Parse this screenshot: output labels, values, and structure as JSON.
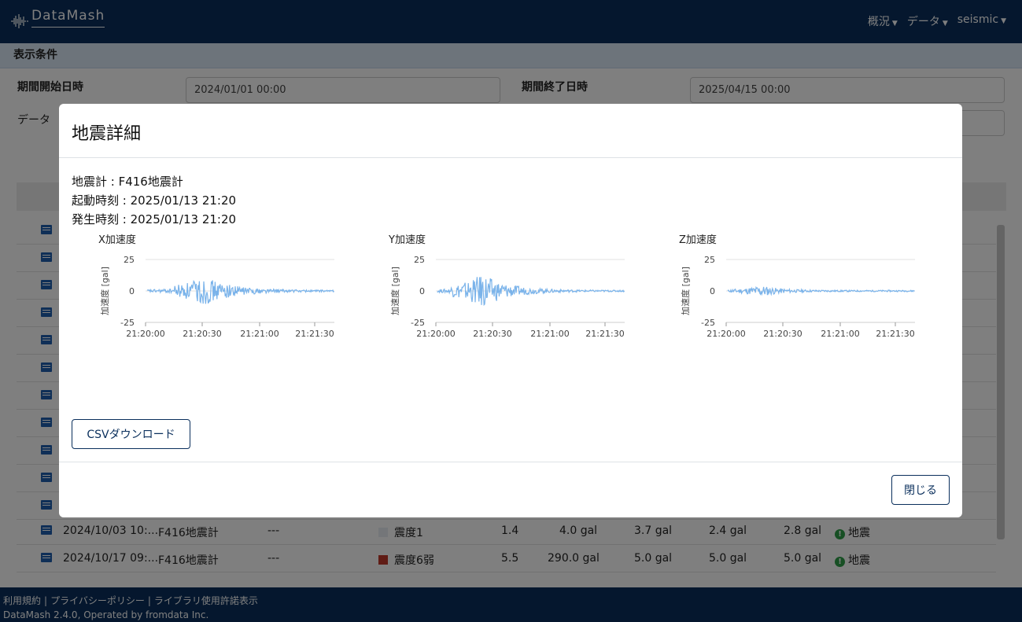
{
  "app": {
    "logo_text": "DataMash",
    "nav": [
      {
        "label": "概況"
      },
      {
        "label": "データ"
      },
      {
        "label": "seismic"
      }
    ]
  },
  "filter": {
    "header": "表示条件",
    "start_label": "期間開始日時",
    "start_value": "2024/01/01 00:00",
    "end_label": "期間終了日時",
    "end_value": "2025/04/15 00:00",
    "data_label": "データ"
  },
  "table": {
    "rows": [
      {
        "datetime": "2024/10/03 10:...",
        "device": "F416地震計",
        "dash": "---",
        "intensity": "震度1",
        "intensity_color": "#e9ecf3",
        "value": "1.4",
        "max": "4.0 gal",
        "x": "3.7 gal",
        "y": "2.4 gal",
        "z": "2.8 gal",
        "status": "地震"
      },
      {
        "datetime": "2024/10/17 09:...",
        "device": "F416地震計",
        "dash": "---",
        "intensity": "震度6弱",
        "intensity_color": "#c0392b",
        "value": "5.5",
        "max": "290.0 gal",
        "x": "5.0 gal",
        "y": "5.0 gal",
        "z": "5.0 gal",
        "status": "地震"
      }
    ]
  },
  "modal": {
    "title": "地震詳細",
    "seismometer": "地震計 : F416地震計",
    "start_time": "起動時刻 : 2025/01/13 21:20",
    "occur_time": "発生時刻 : 2025/01/13 21:20",
    "csv_button": "CSVダウンロード",
    "close_button": "閉じる"
  },
  "colors": {
    "navbar": "#0a2f5c",
    "series": "#7ab3ea"
  },
  "chart_data": [
    {
      "type": "line",
      "title": "X加速度",
      "ylabel": "加速度 [gal]",
      "ylim": [
        -25,
        25
      ],
      "yticks": [
        "25",
        "0",
        "-25"
      ],
      "xticks": [
        "21:20:00",
        "21:20:30",
        "21:21:00",
        "21:21:30"
      ],
      "peak": 11,
      "decay": 9,
      "burst_center": 0.3
    },
    {
      "type": "line",
      "title": "Y加速度",
      "ylabel": "加速度 [gal]",
      "ylim": [
        -25,
        25
      ],
      "yticks": [
        "25",
        "0",
        "-25"
      ],
      "xticks": [
        "21:20:00",
        "21:20:30",
        "21:21:00",
        "21:21:30"
      ],
      "peak": 13,
      "decay": 8,
      "burst_center": 0.24
    },
    {
      "type": "line",
      "title": "Z加速度",
      "ylabel": "加速度 [gal]",
      "ylim": [
        -25,
        25
      ],
      "yticks": [
        "25",
        "0",
        "-25"
      ],
      "xticks": [
        "21:20:00",
        "21:20:30",
        "21:21:00",
        "21:21:30"
      ],
      "peak": 4,
      "decay": 6,
      "burst_center": 0.18
    }
  ]
}
